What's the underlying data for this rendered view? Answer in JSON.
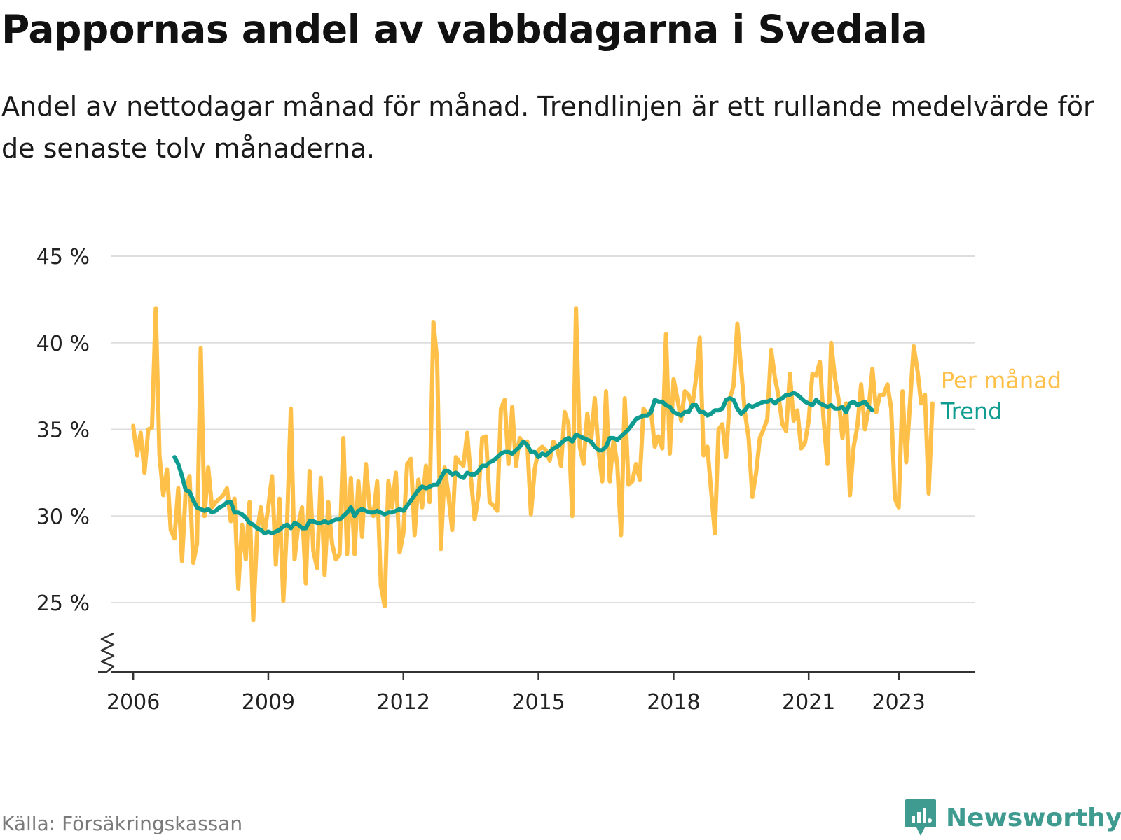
{
  "title": "Pappornas andel av vabbdagarna i Svedala",
  "subtitle": "Andel av nettodagar månad för månad. Trendlinjen är ett rullande medelvärde för de senaste tolv månaderna.",
  "source": "Källa: Försäkringskassan",
  "brand": "Newsworthy",
  "colors": {
    "monthly": "#FFC04A",
    "trend": "#0E9C91",
    "grid": "#DDDDDD",
    "axis": "#333333",
    "brand": "#3F9A90"
  },
  "chart_data": {
    "type": "line",
    "x_unit": "decimal year (month index / 12)",
    "xlim": [
      2005.5,
      2024.7
    ],
    "ylim": [
      21,
      45
    ],
    "y_ticks": [
      25,
      30,
      35,
      40,
      45
    ],
    "y_tick_labels": [
      "25 %",
      "30 %",
      "35 %",
      "40 %",
      "45 %"
    ],
    "x_ticks": [
      2006,
      2009,
      2012,
      2015,
      2018,
      2021,
      2023
    ],
    "x_tick_labels": [
      "2006",
      "2009",
      "2012",
      "2015",
      "2018",
      "2021",
      "2023"
    ],
    "grid": true,
    "axis_break": true,
    "series": [
      {
        "name": "Per månad",
        "color": "#FFC04A",
        "x_start": 2006.0,
        "x_step": 0.08333,
        "values": [
          35.2,
          33.5,
          34.8,
          32.5,
          35.0,
          35.1,
          42.0,
          33.5,
          31.2,
          32.7,
          29.2,
          28.7,
          31.6,
          27.4,
          31.5,
          32.3,
          27.3,
          28.4,
          39.7,
          30.0,
          32.8,
          30.5,
          30.8,
          31.0,
          31.2,
          31.6,
          29.7,
          31.0,
          25.8,
          29.5,
          27.5,
          30.8,
          24.0,
          29.0,
          30.5,
          29.0,
          30.5,
          32.3,
          27.2,
          31.0,
          25.1,
          29.5,
          36.2,
          27.5,
          29.5,
          30.5,
          26.1,
          32.6,
          28.0,
          27.0,
          32.2,
          26.6,
          30.8,
          28.4,
          27.5,
          27.8,
          34.5,
          27.8,
          32.2,
          27.8,
          32.0,
          28.8,
          33.0,
          30.5,
          30.0,
          32.0,
          26.0,
          24.8,
          32.0,
          30.5,
          32.5,
          27.9,
          29.0,
          33.0,
          33.3,
          28.9,
          32.1,
          30.5,
          32.9,
          30.8,
          41.2,
          39.0,
          28.1,
          32.8,
          31.2,
          29.2,
          33.4,
          33.1,
          32.9,
          34.8,
          32.2,
          29.8,
          31.2,
          34.5,
          34.6,
          30.8,
          30.6,
          30.3,
          36.2,
          36.7,
          33.0,
          36.3,
          32.9,
          34.5,
          34.2,
          34.3,
          30.1,
          32.7,
          33.8,
          34.0,
          33.8,
          33.2,
          34.3,
          33.9,
          32.9,
          36.0,
          35.3,
          30.0,
          42.0,
          34.0,
          33.0,
          35.9,
          34.2,
          36.8,
          33.8,
          32.0,
          37.2,
          32.0,
          34.4,
          33.0,
          28.9,
          36.8,
          31.8,
          32.0,
          33.0,
          32.1,
          36.2,
          35.8,
          36.1,
          34.0,
          34.6,
          33.9,
          40.5,
          33.6,
          37.9,
          36.8,
          35.5,
          37.2,
          37.0,
          36.3,
          38.0,
          40.3,
          33.5,
          34.0,
          31.5,
          29.0,
          35.0,
          35.3,
          33.4,
          36.8,
          37.5,
          41.1,
          38.5,
          36.0,
          34.5,
          31.1,
          32.5,
          34.5,
          35.0,
          35.6,
          39.6,
          38.0,
          36.9,
          35.3,
          34.9,
          38.2,
          35.5,
          36.1,
          33.9,
          34.2,
          35.5,
          38.2,
          38.1,
          38.9,
          35.5,
          33.0,
          40.0,
          38.0,
          36.7,
          34.5,
          36.5,
          31.2,
          34.0,
          35.2,
          37.6,
          35.0,
          36.2,
          38.5,
          36.0,
          37.0,
          37.0,
          37.6,
          36.2,
          31.0,
          30.5,
          37.2,
          33.1,
          36.5,
          39.8,
          38.4,
          36.5,
          37.0,
          31.3,
          36.5
        ]
      },
      {
        "name": "Trend",
        "color": "#0E9C91",
        "x_start": 2006.917,
        "x_step": 0.08333,
        "values": [
          33.4,
          33.0,
          32.3,
          31.5,
          31.4,
          30.9,
          30.5,
          30.4,
          30.3,
          30.4,
          30.2,
          30.3,
          30.5,
          30.6,
          30.8,
          30.8,
          30.2,
          30.2,
          30.1,
          29.9,
          29.6,
          29.5,
          29.3,
          29.2,
          29.0,
          29.1,
          29.0,
          29.1,
          29.2,
          29.4,
          29.5,
          29.3,
          29.6,
          29.5,
          29.3,
          29.3,
          29.7,
          29.7,
          29.6,
          29.6,
          29.7,
          29.6,
          29.7,
          29.8,
          29.8,
          30.0,
          30.2,
          30.5,
          30.0,
          30.3,
          30.4,
          30.3,
          30.2,
          30.2,
          30.3,
          30.2,
          30.1,
          30.2,
          30.2,
          30.3,
          30.4,
          30.3,
          30.6,
          30.9,
          31.2,
          31.5,
          31.7,
          31.6,
          31.7,
          31.8,
          31.8,
          32.2,
          32.6,
          32.6,
          32.4,
          32.5,
          32.3,
          32.2,
          32.5,
          32.4,
          32.4,
          32.6,
          32.9,
          32.9,
          33.1,
          33.2,
          33.4,
          33.6,
          33.7,
          33.7,
          33.6,
          33.8,
          34.0,
          34.3,
          34.1,
          33.7,
          33.7,
          33.4,
          33.6,
          33.5,
          33.7,
          33.9,
          34.0,
          34.2,
          34.4,
          34.5,
          34.3,
          34.7,
          34.6,
          34.5,
          34.4,
          34.3,
          34.0,
          33.8,
          33.8,
          34.0,
          34.5,
          34.5,
          34.4,
          34.6,
          34.8,
          35.0,
          35.3,
          35.6,
          35.7,
          35.8,
          35.8,
          36.0,
          36.7,
          36.6,
          36.6,
          36.4,
          36.3,
          36.0,
          35.9,
          35.8,
          36.0,
          36.0,
          36.4,
          36.4,
          36.0,
          36.0,
          35.8,
          35.9,
          36.1,
          36.1,
          36.2,
          36.7,
          36.8,
          36.7,
          36.2,
          35.9,
          36.1,
          36.4,
          36.3,
          36.4,
          36.5,
          36.6,
          36.6,
          36.7,
          36.5,
          36.7,
          36.8,
          37.0,
          37.0,
          37.1,
          37.0,
          36.8,
          36.6,
          36.5,
          36.4,
          36.7,
          36.5,
          36.4,
          36.3,
          36.4,
          36.2,
          36.2,
          36.3,
          36.0,
          36.5,
          36.6,
          36.4,
          36.5,
          36.6,
          36.3,
          36.1
        ]
      }
    ],
    "legend": [
      "Per månad",
      "Trend"
    ],
    "legend_placement": "right, next to line ends"
  }
}
